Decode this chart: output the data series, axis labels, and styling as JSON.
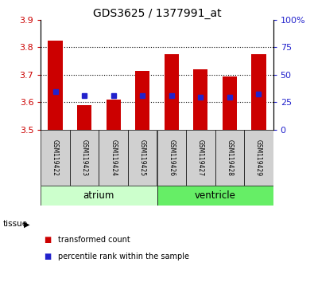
{
  "title": "GDS3625 / 1377991_at",
  "samples": [
    "GSM119422",
    "GSM119423",
    "GSM119424",
    "GSM119425",
    "GSM119426",
    "GSM119427",
    "GSM119428",
    "GSM119429"
  ],
  "red_bar_top": [
    3.825,
    3.59,
    3.61,
    3.715,
    3.775,
    3.72,
    3.695,
    3.775
  ],
  "red_bar_bottom": 3.5,
  "blue_dot_y": [
    3.64,
    3.625,
    3.625,
    3.623,
    3.625,
    3.62,
    3.62,
    3.63
  ],
  "ylim": [
    3.5,
    3.9
  ],
  "yticks_left": [
    3.5,
    3.6,
    3.7,
    3.8,
    3.9
  ],
  "yticks_right_pct": [
    0,
    25,
    50,
    75,
    100
  ],
  "bar_color": "#cc0000",
  "dot_color": "#2222cc",
  "bg_color": "#ffffff",
  "grid_color": "#000000",
  "left_tick_color": "#cc0000",
  "right_tick_color": "#2222cc",
  "atrium_color": "#ccffcc",
  "ventricle_color": "#66ee66",
  "sample_box_color": "#d0d0d0",
  "legend_items": [
    {
      "color": "#cc0000",
      "label": "transformed count"
    },
    {
      "color": "#2222cc",
      "label": "percentile rank within the sample"
    }
  ],
  "bar_width": 0.5,
  "grid_yticks": [
    3.6,
    3.7,
    3.8
  ]
}
